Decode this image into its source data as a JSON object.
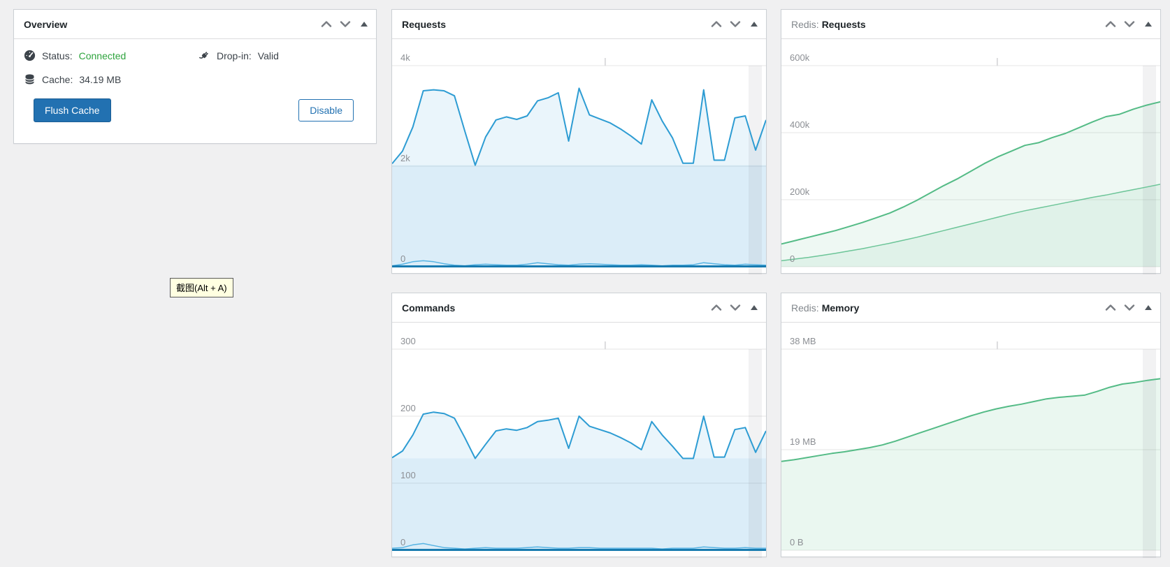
{
  "page": {
    "background_color": "#f0f0f1",
    "app": "WordPress admin dashboard widgets"
  },
  "widgets": {
    "overview": {
      "title": "Overview",
      "status_label": "Status:",
      "status_value": "Connected",
      "status_color": "#2fa43e",
      "dropin_label": "Drop-in:",
      "dropin_value": "Valid",
      "cache_label": "Cache:",
      "cache_value": "34.19 MB",
      "flush_button_label": "Flush Cache",
      "disable_button_label": "Disable",
      "icons": [
        "gauge-icon",
        "plug-icon",
        "database-icon"
      ],
      "controls": [
        "chevron-up-icon",
        "chevron-down-icon",
        "collapse-triangle-icon"
      ]
    },
    "requests": {
      "title": "Requests"
    },
    "redis_requests": {
      "title_prefix": "Redis:",
      "title": "Requests"
    },
    "commands": {
      "title": "Commands"
    },
    "redis_memory": {
      "title_prefix": "Redis:",
      "title": "Memory"
    }
  },
  "tooltip": {
    "text": "截图(Alt + A)",
    "background": "#ffffe1"
  },
  "colors": {
    "primary_button": "#2271b1",
    "chart_blue": "#2d9cd3",
    "chart_blue_light": "#55b3e3",
    "chart_blue_baseline": "#187bb0",
    "chart_green": "#54bb86",
    "chart_green_light": "#6cc598",
    "gridline": "#e5e5e5",
    "axis_label": "#8c8f94"
  },
  "chart_data": [
    {
      "id": "requests",
      "type": "area",
      "title": "Requests",
      "ylim": [
        0,
        4000
      ],
      "grid": true,
      "legend": "none",
      "ticks": [
        {
          "label": "4k",
          "value": 4000
        },
        {
          "label": "2k",
          "value": 2000
        },
        {
          "label": "0",
          "value": 0
        }
      ],
      "min_band_opacity": 0.08,
      "baseline_color": "#187bb0",
      "series": [
        {
          "name": "series-a",
          "color": "#2d9cd3",
          "line_width": 2,
          "fill_opacity": 0.1,
          "values": [
            2050,
            2300,
            2780,
            3500,
            3520,
            3500,
            3400,
            2700,
            2020,
            2580,
            2920,
            2980,
            2930,
            3000,
            3300,
            3360,
            3460,
            2500,
            3550,
            3020,
            2940,
            2860,
            2740,
            2600,
            2440,
            3320,
            2900,
            2560,
            2060,
            2060,
            3520,
            2120,
            2120,
            2960,
            3000,
            2320,
            2920
          ]
        },
        {
          "name": "series-b",
          "color": "#55b3e3",
          "line_width": 1.5,
          "fill_opacity": 0,
          "values": [
            20,
            50,
            100,
            120,
            100,
            60,
            30,
            20,
            40,
            50,
            40,
            30,
            30,
            50,
            80,
            60,
            40,
            30,
            50,
            60,
            50,
            40,
            30,
            30,
            40,
            30,
            20,
            30,
            30,
            40,
            80,
            60,
            40,
            30,
            50,
            40,
            30
          ]
        }
      ]
    },
    {
      "id": "redis-requests",
      "type": "area",
      "title": "Redis: Requests",
      "ylim": [
        0,
        600000
      ],
      "grid": true,
      "legend": "none",
      "ticks": [
        {
          "label": "600k",
          "value": 600000
        },
        {
          "label": "400k",
          "value": 400000
        },
        {
          "label": "200k",
          "value": 200000
        },
        {
          "label": "0",
          "value": 0
        }
      ],
      "series": [
        {
          "name": "series-a",
          "color": "#54bb86",
          "line_width": 2,
          "fill_opacity": 0.1,
          "values": [
            68000,
            78000,
            88000,
            98000,
            108000,
            120000,
            132000,
            146000,
            160000,
            178000,
            198000,
            220000,
            242000,
            262000,
            285000,
            308000,
            328000,
            345000,
            362000,
            370000,
            385000,
            398000,
            415000,
            432000,
            448000,
            455000,
            470000,
            482000,
            492000
          ]
        },
        {
          "name": "series-b",
          "color": "#6cc598",
          "line_width": 1.5,
          "fill_opacity": 0.1,
          "values": [
            18000,
            23000,
            28000,
            34000,
            40000,
            47000,
            54000,
            62000,
            70000,
            79000,
            88000,
            98000,
            108000,
            118000,
            128000,
            138000,
            148000,
            158000,
            167000,
            175000,
            183000,
            191000,
            199000,
            207000,
            214000,
            222000,
            230000,
            238000,
            246000
          ]
        }
      ]
    },
    {
      "id": "commands",
      "type": "area",
      "title": "Commands",
      "ylim": [
        0,
        300
      ],
      "grid": true,
      "legend": "none",
      "ticks": [
        {
          "label": "300",
          "value": 300
        },
        {
          "label": "200",
          "value": 200
        },
        {
          "label": "100",
          "value": 100
        },
        {
          "label": "0",
          "value": 0
        }
      ],
      "min_band_opacity": 0.08,
      "baseline_color": "#187bb0",
      "series": [
        {
          "name": "series-a",
          "color": "#2d9cd3",
          "line_width": 2,
          "fill_opacity": 0.1,
          "values": [
            138,
            148,
            172,
            203,
            206,
            204,
            197,
            168,
            137,
            158,
            178,
            181,
            179,
            183,
            192,
            194,
            197,
            152,
            200,
            185,
            180,
            175,
            168,
            160,
            150,
            192,
            172,
            155,
            137,
            137,
            200,
            139,
            139,
            180,
            183,
            146,
            178
          ]
        },
        {
          "name": "series-b",
          "color": "#55b3e3",
          "line_width": 1.5,
          "fill_opacity": 0,
          "values": [
            3,
            4,
            8,
            10,
            7,
            4,
            3,
            2,
            3,
            4,
            3,
            3,
            3,
            4,
            5,
            4,
            3,
            3,
            4,
            4,
            3,
            3,
            3,
            3,
            3,
            3,
            2,
            3,
            3,
            3,
            5,
            4,
            3,
            3,
            4,
            3,
            3
          ]
        }
      ]
    },
    {
      "id": "redis-memory",
      "type": "area",
      "title": "Redis: Memory",
      "ylim": [
        0,
        38
      ],
      "grid": true,
      "legend": "none",
      "ticks": [
        {
          "label": "38 MB",
          "value": 38
        },
        {
          "label": "19 MB",
          "value": 19
        },
        {
          "label": "0 B",
          "value": 0
        }
      ],
      "series": [
        {
          "name": "series-a",
          "color": "#54bb86",
          "line_width": 2,
          "fill_opacity": 0.12,
          "values": [
            16.8,
            17.1,
            17.5,
            17.9,
            18.3,
            18.6,
            19.0,
            19.4,
            19.9,
            20.6,
            21.4,
            22.2,
            23.0,
            23.8,
            24.6,
            25.4,
            26.1,
            26.7,
            27.2,
            27.6,
            28.1,
            28.6,
            28.9,
            29.1,
            29.3,
            30.0,
            30.8,
            31.4,
            31.7,
            32.1,
            32.4
          ]
        }
      ]
    }
  ]
}
